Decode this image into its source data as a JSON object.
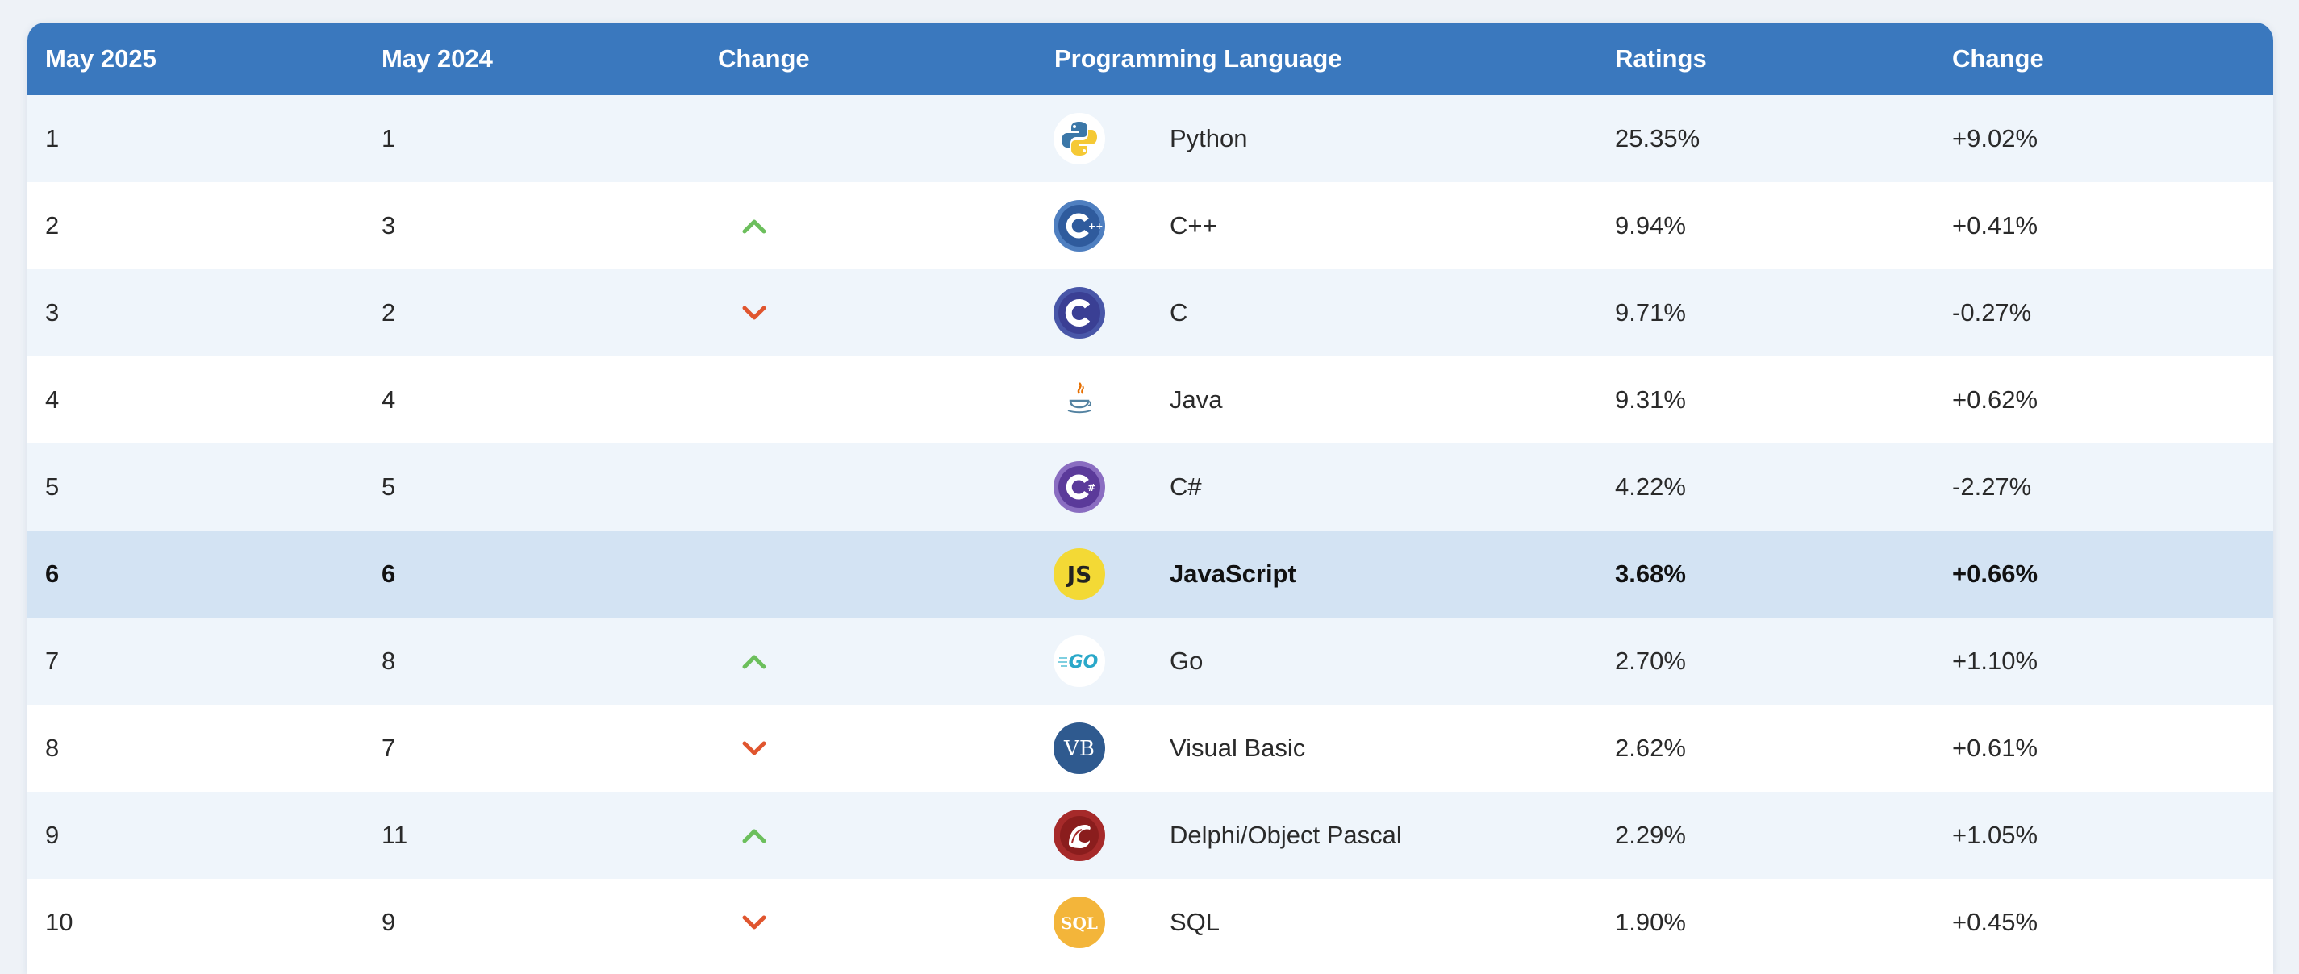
{
  "table": {
    "headers": [
      "May 2025",
      "May 2024",
      "Change",
      "Programming Language",
      "Ratings",
      "Change"
    ],
    "rows": [
      {
        "rank2025": "1",
        "rank2024": "1",
        "trend": "none",
        "logo": "python-logo-icon",
        "language": "Python",
        "rating": "25.35%",
        "change": "+9.02%"
      },
      {
        "rank2025": "2",
        "rank2024": "3",
        "trend": "up",
        "logo": "cpp-logo-icon",
        "language": "C++",
        "rating": "9.94%",
        "change": "+0.41%"
      },
      {
        "rank2025": "3",
        "rank2024": "2",
        "trend": "down",
        "logo": "c-logo-icon",
        "language": "C",
        "rating": "9.71%",
        "change": "-0.27%"
      },
      {
        "rank2025": "4",
        "rank2024": "4",
        "trend": "none",
        "logo": "java-logo-icon",
        "language": "Java",
        "rating": "9.31%",
        "change": "+0.62%"
      },
      {
        "rank2025": "5",
        "rank2024": "5",
        "trend": "none",
        "logo": "csharp-logo-icon",
        "language": "C#",
        "rating": "4.22%",
        "change": "-2.27%"
      },
      {
        "rank2025": "6",
        "rank2024": "6",
        "trend": "none",
        "logo": "javascript-logo-icon",
        "language": "JavaScript",
        "rating": "3.68%",
        "change": "+0.66%",
        "highlighted": true
      },
      {
        "rank2025": "7",
        "rank2024": "8",
        "trend": "up",
        "logo": "go-logo-icon",
        "language": "Go",
        "rating": "2.70%",
        "change": "+1.10%"
      },
      {
        "rank2025": "8",
        "rank2024": "7",
        "trend": "down",
        "logo": "visual-basic-logo-icon",
        "language": "Visual Basic",
        "rating": "2.62%",
        "change": "+0.61%"
      },
      {
        "rank2025": "9",
        "rank2024": "11",
        "trend": "up",
        "logo": "delphi-logo-icon",
        "language": "Delphi/Object Pascal",
        "rating": "2.29%",
        "change": "+1.05%"
      },
      {
        "rank2025": "10",
        "rank2024": "9",
        "trend": "down",
        "logo": "sql-logo-icon",
        "language": "SQL",
        "rating": "1.90%",
        "change": "+0.45%"
      }
    ]
  },
  "logo_text": {
    "javascript": "JS",
    "go": "GO",
    "visual_basic": "VB",
    "sql": "SQL"
  },
  "colors": {
    "header_bg": "#3a78be",
    "row_odd": "#eff5fb",
    "row_even": "#ffffff",
    "row_highlight": "#d3e3f3",
    "trend_up": "#6cbf5c",
    "trend_down": "#e0552e"
  }
}
